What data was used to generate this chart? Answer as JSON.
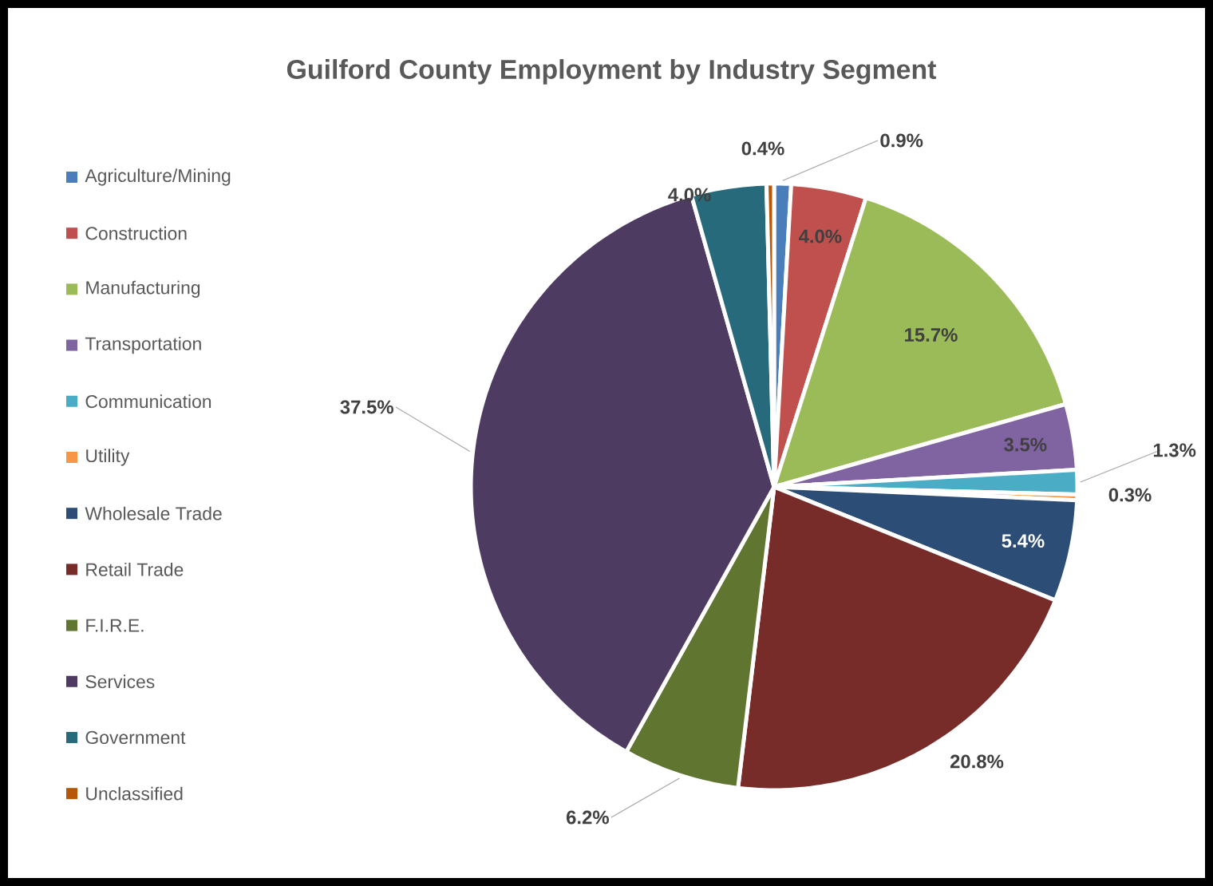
{
  "chart_data": {
    "type": "pie",
    "title": "Guilford County Employment by Industry Segment",
    "categories": [
      "Agriculture/Mining",
      "Construction",
      "Manufacturing",
      "Transportation",
      "Communication",
      "Utility",
      "Wholesale Trade",
      "Retail Trade",
      "F.I.R.E.",
      "Services",
      "Government",
      "Unclassified"
    ],
    "values": [
      0.9,
      4.0,
      15.7,
      3.5,
      1.3,
      0.3,
      5.4,
      20.8,
      6.2,
      37.5,
      4.0,
      0.4
    ],
    "colors": [
      "#4a7ebb",
      "#c0504d",
      "#9bbb59",
      "#8064a2",
      "#4bacc6",
      "#f79646",
      "#2c4d75",
      "#772c2a",
      "#5f7530",
      "#4d3b62",
      "#276a7c",
      "#b65708"
    ],
    "value_labels": [
      "0.9%",
      "4.0%",
      "15.7%",
      "3.5%",
      "1.3%",
      "0.3%",
      "5.4%",
      "20.8%",
      "6.2%",
      "37.5%",
      "4.0%",
      "0.4%"
    ],
    "legend": "left"
  }
}
